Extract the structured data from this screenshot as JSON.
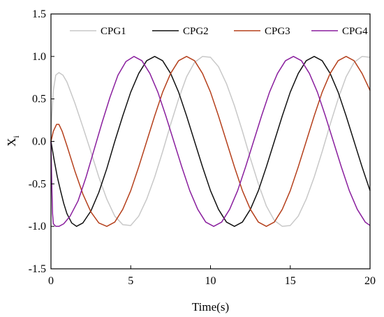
{
  "chart_data": {
    "type": "line",
    "xlabel": "Time(s)",
    "ylabel_main": "X",
    "ylabel_sub": "i",
    "xlim": [
      0,
      20
    ],
    "ylim": [
      -1.5,
      1.5
    ],
    "xticks": [
      0,
      5,
      10,
      15,
      20
    ],
    "xtick_labels": [
      "0",
      "5",
      "10",
      "15",
      "20"
    ],
    "yticks": [
      -1.5,
      -1.0,
      -0.5,
      0.0,
      0.5,
      1.0,
      1.5
    ],
    "ytick_labels": [
      "-1.5",
      "-1.0",
      "-0.5",
      "0.0",
      "0.5",
      "1.0",
      "1.5"
    ],
    "grid": false,
    "legend": {
      "placement": "top",
      "orientation": "horizontal"
    },
    "series": [
      {
        "name": "CPG1",
        "color": "#c8c8c8",
        "points": [
          [
            0,
            0
          ],
          [
            0.05,
            0.3
          ],
          [
            0.15,
            0.6
          ],
          [
            0.3,
            0.78
          ],
          [
            0.5,
            0.81
          ],
          [
            0.75,
            0.78
          ],
          [
            1.0,
            0.7
          ],
          [
            1.5,
            0.45
          ],
          [
            2.0,
            0.17
          ],
          [
            2.5,
            -0.12
          ],
          [
            3.0,
            -0.42
          ],
          [
            3.5,
            -0.68
          ],
          [
            4.0,
            -0.88
          ],
          [
            4.5,
            -0.98
          ],
          [
            5.0,
            -0.99
          ],
          [
            5.5,
            -0.88
          ],
          [
            6.0,
            -0.68
          ],
          [
            6.5,
            -0.42
          ],
          [
            7.0,
            -0.12
          ],
          [
            7.5,
            0.2
          ],
          [
            8.0,
            0.5
          ],
          [
            8.5,
            0.76
          ],
          [
            9.0,
            0.93
          ],
          [
            9.5,
            1.0
          ],
          [
            10.0,
            0.99
          ],
          [
            10.5,
            0.88
          ],
          [
            11.0,
            0.68
          ],
          [
            11.5,
            0.42
          ],
          [
            12.0,
            0.12
          ],
          [
            12.5,
            -0.2
          ],
          [
            13.0,
            -0.5
          ],
          [
            13.5,
            -0.76
          ],
          [
            14.0,
            -0.93
          ],
          [
            14.5,
            -1.0
          ],
          [
            15.0,
            -0.99
          ],
          [
            15.5,
            -0.88
          ],
          [
            16.0,
            -0.68
          ],
          [
            16.5,
            -0.42
          ],
          [
            17.0,
            -0.12
          ],
          [
            17.5,
            0.2
          ],
          [
            18.0,
            0.5
          ],
          [
            18.5,
            0.76
          ],
          [
            19.0,
            0.93
          ],
          [
            19.5,
            1.0
          ],
          [
            20.0,
            0.99
          ]
        ]
      },
      {
        "name": "CPG2",
        "color": "#111111",
        "points": [
          [
            0,
            0
          ],
          [
            0.2,
            -0.22
          ],
          [
            0.4,
            -0.42
          ],
          [
            0.6,
            -0.58
          ],
          [
            0.8,
            -0.73
          ],
          [
            1.0,
            -0.85
          ],
          [
            1.3,
            -0.96
          ],
          [
            1.6,
            -1.0
          ],
          [
            2.0,
            -0.96
          ],
          [
            2.5,
            -0.82
          ],
          [
            3.0,
            -0.6
          ],
          [
            3.5,
            -0.32
          ],
          [
            4.0,
            0.0
          ],
          [
            4.5,
            0.3
          ],
          [
            5.0,
            0.58
          ],
          [
            5.5,
            0.8
          ],
          [
            6.0,
            0.95
          ],
          [
            6.5,
            1.0
          ],
          [
            7.0,
            0.95
          ],
          [
            7.5,
            0.8
          ],
          [
            8.0,
            0.58
          ],
          [
            8.5,
            0.3
          ],
          [
            9.0,
            0.0
          ],
          [
            9.5,
            -0.3
          ],
          [
            10.0,
            -0.58
          ],
          [
            10.5,
            -0.8
          ],
          [
            11.0,
            -0.95
          ],
          [
            11.5,
            -1.0
          ],
          [
            12.0,
            -0.95
          ],
          [
            12.5,
            -0.8
          ],
          [
            13.0,
            -0.58
          ],
          [
            13.5,
            -0.3
          ],
          [
            14.0,
            0.0
          ],
          [
            14.5,
            0.3
          ],
          [
            15.0,
            0.58
          ],
          [
            15.5,
            0.8
          ],
          [
            16.0,
            0.95
          ],
          [
            16.5,
            1.0
          ],
          [
            17.0,
            0.95
          ],
          [
            17.5,
            0.8
          ],
          [
            18.0,
            0.58
          ],
          [
            18.5,
            0.3
          ],
          [
            19.0,
            0.0
          ],
          [
            19.5,
            -0.3
          ],
          [
            20.0,
            -0.58
          ]
        ]
      },
      {
        "name": "CPG3",
        "color": "#b5401c",
        "points": [
          [
            0,
            0
          ],
          [
            0.15,
            0.12
          ],
          [
            0.35,
            0.2
          ],
          [
            0.5,
            0.2
          ],
          [
            0.7,
            0.12
          ],
          [
            1.0,
            -0.05
          ],
          [
            1.5,
            -0.35
          ],
          [
            2.0,
            -0.62
          ],
          [
            2.5,
            -0.83
          ],
          [
            3.0,
            -0.96
          ],
          [
            3.5,
            -1.0
          ],
          [
            4.0,
            -0.95
          ],
          [
            4.5,
            -0.8
          ],
          [
            5.0,
            -0.58
          ],
          [
            5.5,
            -0.3
          ],
          [
            6.0,
            0.0
          ],
          [
            6.5,
            0.3
          ],
          [
            7.0,
            0.58
          ],
          [
            7.5,
            0.8
          ],
          [
            8.0,
            0.95
          ],
          [
            8.5,
            1.0
          ],
          [
            9.0,
            0.95
          ],
          [
            9.5,
            0.8
          ],
          [
            10.0,
            0.58
          ],
          [
            10.5,
            0.3
          ],
          [
            11.0,
            0.0
          ],
          [
            11.5,
            -0.3
          ],
          [
            12.0,
            -0.58
          ],
          [
            12.5,
            -0.8
          ],
          [
            13.0,
            -0.95
          ],
          [
            13.5,
            -1.0
          ],
          [
            14.0,
            -0.95
          ],
          [
            14.5,
            -0.8
          ],
          [
            15.0,
            -0.58
          ],
          [
            15.5,
            -0.3
          ],
          [
            16.0,
            0.0
          ],
          [
            16.5,
            0.3
          ],
          [
            17.0,
            0.58
          ],
          [
            17.5,
            0.8
          ],
          [
            18.0,
            0.95
          ],
          [
            18.5,
            1.0
          ],
          [
            19.0,
            0.95
          ],
          [
            19.5,
            0.8
          ],
          [
            20.0,
            0.6
          ]
        ]
      },
      {
        "name": "CPG4",
        "color": "#8a1f9e",
        "points": [
          [
            0,
            0
          ],
          [
            0.05,
            -0.5
          ],
          [
            0.1,
            -0.85
          ],
          [
            0.15,
            -0.97
          ],
          [
            0.3,
            -1.0
          ],
          [
            0.5,
            -1.0
          ],
          [
            0.8,
            -0.97
          ],
          [
            1.2,
            -0.88
          ],
          [
            1.7,
            -0.7
          ],
          [
            2.2,
            -0.42
          ],
          [
            2.7,
            -0.1
          ],
          [
            3.2,
            0.22
          ],
          [
            3.7,
            0.52
          ],
          [
            4.2,
            0.78
          ],
          [
            4.7,
            0.94
          ],
          [
            5.2,
            1.0
          ],
          [
            5.7,
            0.95
          ],
          [
            6.2,
            0.8
          ],
          [
            6.7,
            0.58
          ],
          [
            7.2,
            0.3
          ],
          [
            7.7,
            0.0
          ],
          [
            8.2,
            -0.3
          ],
          [
            8.7,
            -0.58
          ],
          [
            9.2,
            -0.8
          ],
          [
            9.7,
            -0.95
          ],
          [
            10.2,
            -1.0
          ],
          [
            10.7,
            -0.95
          ],
          [
            11.2,
            -0.8
          ],
          [
            11.7,
            -0.58
          ],
          [
            12.2,
            -0.3
          ],
          [
            12.7,
            0.0
          ],
          [
            13.2,
            0.3
          ],
          [
            13.7,
            0.58
          ],
          [
            14.2,
            0.8
          ],
          [
            14.7,
            0.95
          ],
          [
            15.2,
            1.0
          ],
          [
            15.7,
            0.95
          ],
          [
            16.2,
            0.8
          ],
          [
            16.7,
            0.58
          ],
          [
            17.2,
            0.3
          ],
          [
            17.7,
            0.0
          ],
          [
            18.2,
            -0.3
          ],
          [
            18.7,
            -0.58
          ],
          [
            19.2,
            -0.8
          ],
          [
            19.7,
            -0.95
          ],
          [
            20.0,
            -0.99
          ]
        ]
      }
    ]
  }
}
